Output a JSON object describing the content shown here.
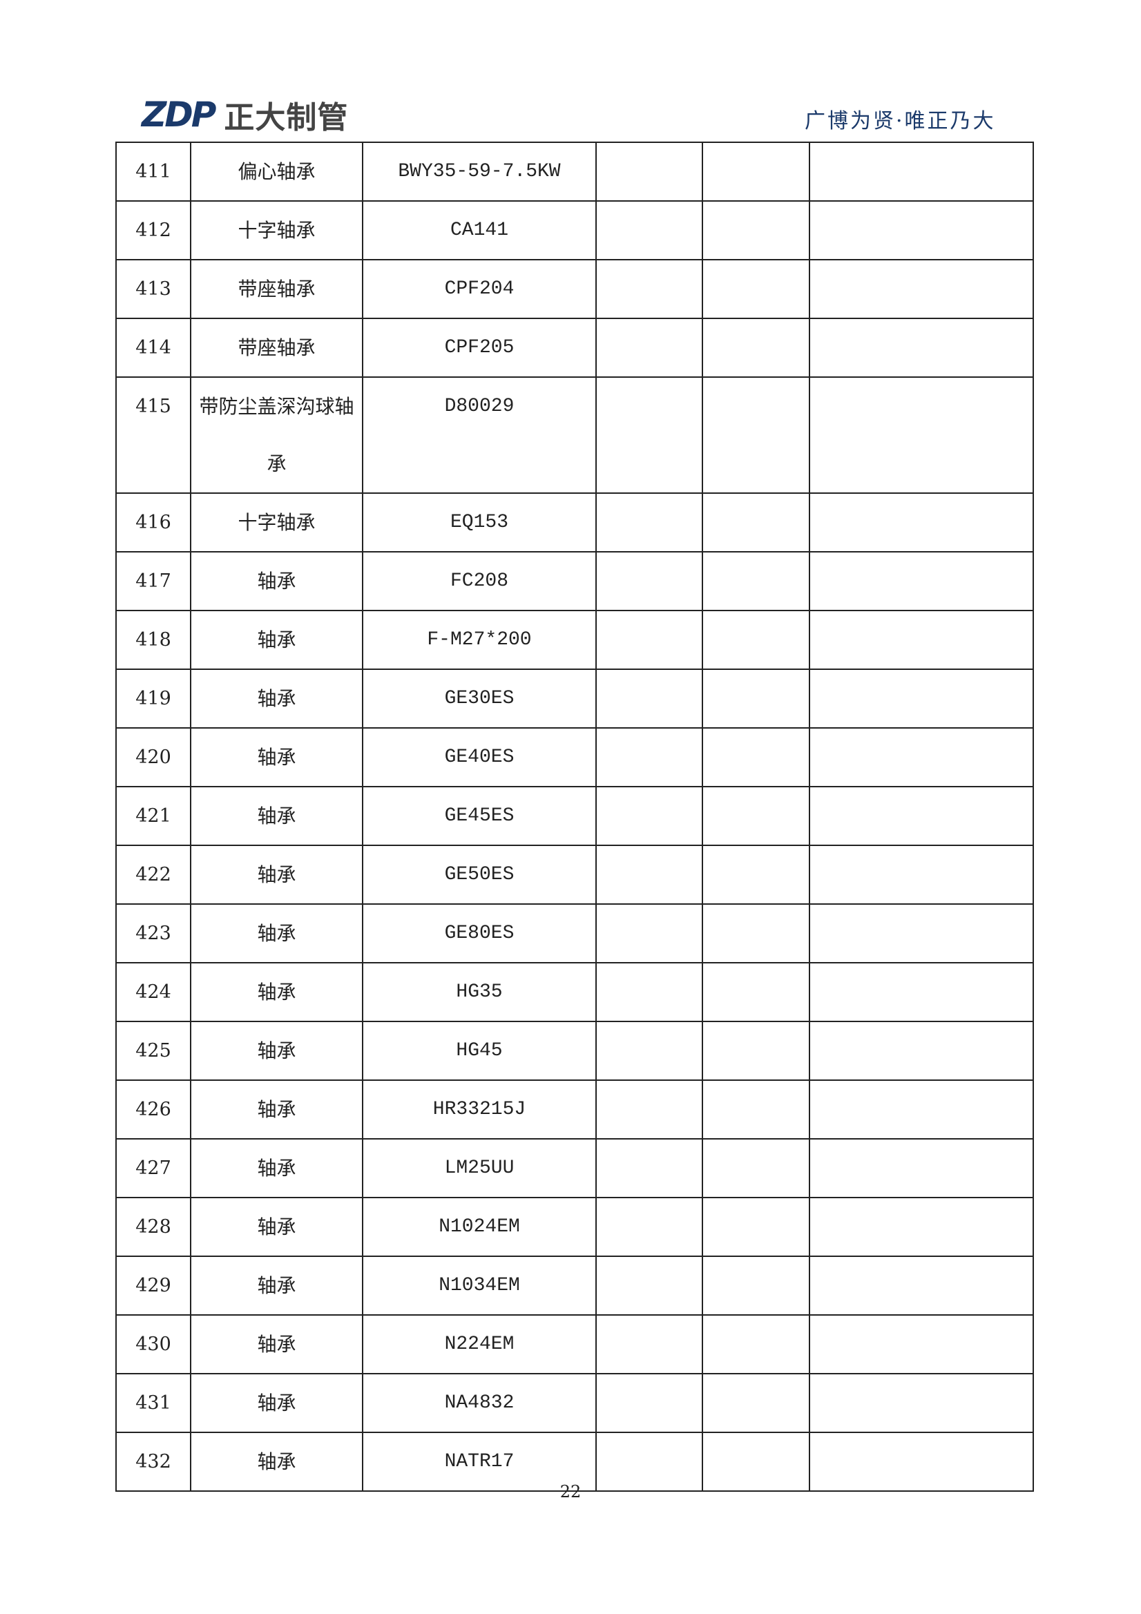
{
  "header": {
    "logo_mark": "ZDP",
    "logo_text": "正大制管",
    "slogan": "广博为贤·唯正乃大",
    "brand_color": "#1b3a6b"
  },
  "table": {
    "rows": [
      {
        "no": "411",
        "name": "偏心轴承",
        "model": "BWY35-59-7.5KW"
      },
      {
        "no": "412",
        "name": "十字轴承",
        "model": "CA141"
      },
      {
        "no": "413",
        "name": "带座轴承",
        "model": "CPF204"
      },
      {
        "no": "414",
        "name": "带座轴承",
        "model": "CPF205"
      },
      {
        "no": "415",
        "name": "带防尘盖深沟球轴承",
        "model": "D80029"
      },
      {
        "no": "416",
        "name": "十字轴承",
        "model": "EQ153"
      },
      {
        "no": "417",
        "name": "轴承",
        "model": "FC208"
      },
      {
        "no": "418",
        "name": "轴承",
        "model": "F-M27*200"
      },
      {
        "no": "419",
        "name": "轴承",
        "model": "GE30ES"
      },
      {
        "no": "420",
        "name": "轴承",
        "model": "GE40ES"
      },
      {
        "no": "421",
        "name": "轴承",
        "model": "GE45ES"
      },
      {
        "no": "422",
        "name": "轴承",
        "model": "GE50ES"
      },
      {
        "no": "423",
        "name": "轴承",
        "model": "GE80ES"
      },
      {
        "no": "424",
        "name": "轴承",
        "model": "HG35"
      },
      {
        "no": "425",
        "name": "轴承",
        "model": "HG45"
      },
      {
        "no": "426",
        "name": "轴承",
        "model": "HR33215J"
      },
      {
        "no": "427",
        "name": "轴承",
        "model": "LM25UU"
      },
      {
        "no": "428",
        "name": "轴承",
        "model": "N1024EM"
      },
      {
        "no": "429",
        "name": "轴承",
        "model": "N1034EM"
      },
      {
        "no": "430",
        "name": "轴承",
        "model": "N224EM"
      },
      {
        "no": "431",
        "name": "轴承",
        "model": "NA4832"
      },
      {
        "no": "432",
        "name": "轴承",
        "model": "NATR17"
      }
    ]
  },
  "footer": {
    "page_number": "22"
  }
}
